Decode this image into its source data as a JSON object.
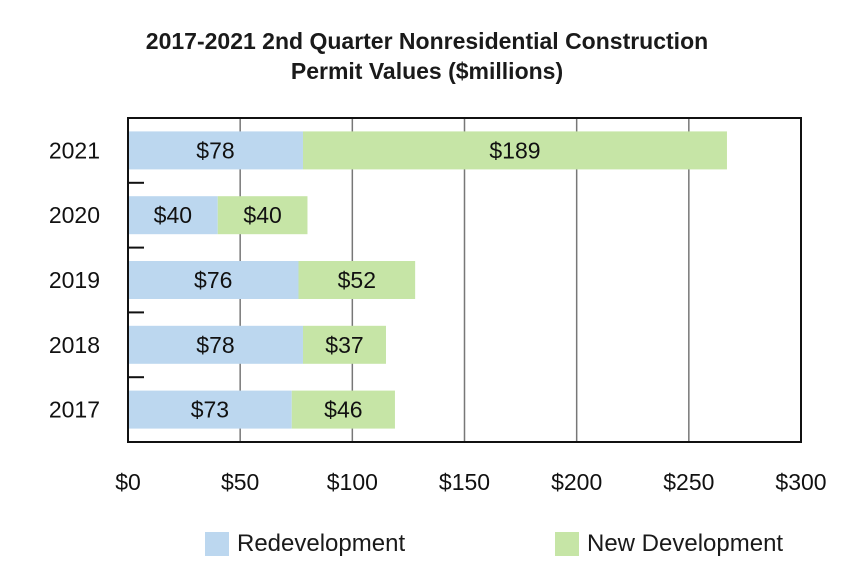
{
  "chart_data": {
    "type": "bar",
    "orientation": "horizontal",
    "stacked": true,
    "title": [
      "2017-2021 2nd Quarter Nonresidential Construction",
      "Permit Values ($millions)"
    ],
    "categories": [
      "2021",
      "2020",
      "2019",
      "2018",
      "2017"
    ],
    "series": [
      {
        "name": "Redevelopment",
        "color": "#bcd7ef",
        "values": [
          78,
          40,
          76,
          78,
          73
        ],
        "labels": [
          "$78",
          "$40",
          "$76",
          "$78",
          "$73"
        ]
      },
      {
        "name": "New Development",
        "color": "#c6e5a6",
        "values": [
          189,
          40,
          52,
          37,
          46
        ],
        "labels": [
          "$189",
          "$40",
          "$52",
          "$37",
          "$46"
        ]
      }
    ],
    "xlim": [
      0,
      300
    ],
    "xticks": [
      0,
      50,
      100,
      150,
      200,
      250,
      300
    ],
    "xtick_labels": [
      "$0",
      "$50",
      "$100",
      "$150",
      "$200",
      "$250",
      "$300"
    ],
    "grid": "vertical",
    "legend_position": "bottom"
  }
}
